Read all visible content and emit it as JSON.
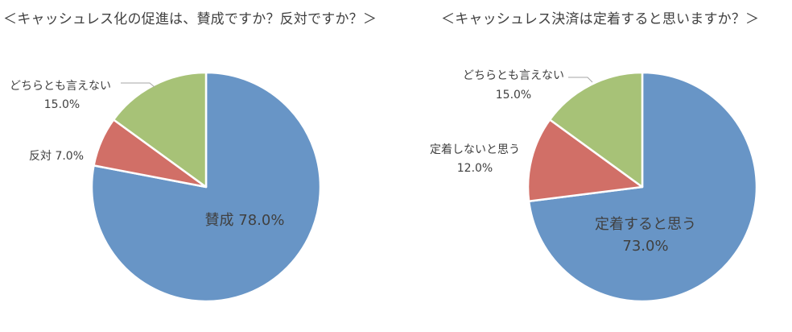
{
  "chart_data": [
    {
      "type": "pie",
      "title": "＜キャッシュレス化の促進は、賛成ですか？反対ですか？＞",
      "slices": [
        {
          "name": "賛成",
          "value": 78.0,
          "value_label": "78.0%",
          "color": "#6895C6"
        },
        {
          "name": "反対",
          "value": 7.0,
          "value_label": "7.0%",
          "color": "#D16F67"
        },
        {
          "name": "どちらとも言えない",
          "value": 15.0,
          "value_label": "15.0%",
          "color": "#A7C277"
        }
      ]
    },
    {
      "type": "pie",
      "title": "＜キャッシュレス決済は定着すると思いますか？＞",
      "slices": [
        {
          "name": "定着すると思う",
          "value": 73.0,
          "value_label": "73.0%",
          "color": "#6895C6"
        },
        {
          "name": "定着しないと思う",
          "value": 12.0,
          "value_label": "12.0%",
          "color": "#D16F67"
        },
        {
          "name": "どちらとも言えない",
          "value": 15.0,
          "value_label": "15.0%",
          "color": "#A7C277"
        }
      ]
    }
  ]
}
